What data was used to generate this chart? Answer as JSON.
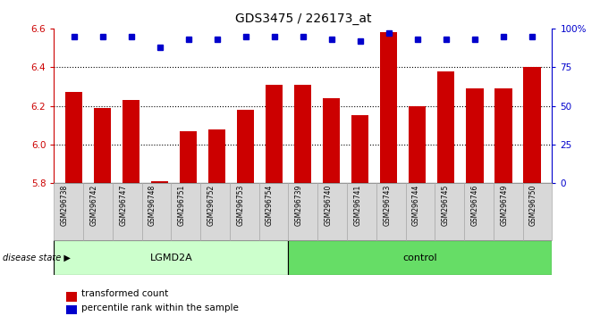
{
  "title": "GDS3475 / 226173_at",
  "samples": [
    "GSM296738",
    "GSM296742",
    "GSM296747",
    "GSM296748",
    "GSM296751",
    "GSM296752",
    "GSM296753",
    "GSM296754",
    "GSM296739",
    "GSM296740",
    "GSM296741",
    "GSM296743",
    "GSM296744",
    "GSM296745",
    "GSM296746",
    "GSM296749",
    "GSM296750"
  ],
  "bar_values": [
    6.27,
    6.19,
    6.23,
    5.81,
    6.07,
    6.08,
    6.18,
    6.31,
    6.31,
    6.24,
    6.15,
    6.58,
    6.2,
    6.38,
    6.29,
    6.29,
    6.4
  ],
  "percentile_values": [
    95,
    95,
    95,
    88,
    93,
    93,
    95,
    95,
    95,
    93,
    92,
    97,
    93,
    93,
    93,
    95,
    95
  ],
  "groups": [
    {
      "label": "LGMD2A",
      "start": 0,
      "end": 8,
      "color": "#ccffcc"
    },
    {
      "label": "control",
      "start": 8,
      "end": 17,
      "color": "#66dd66"
    }
  ],
  "ylim_left": [
    5.8,
    6.6
  ],
  "ylim_right": [
    0,
    100
  ],
  "yticks_left": [
    5.8,
    6.0,
    6.2,
    6.4,
    6.6
  ],
  "yticks_right": [
    0,
    25,
    50,
    75,
    100
  ],
  "ytick_right_labels": [
    "0",
    "25",
    "50",
    "75",
    "100%"
  ],
  "bar_color": "#cc0000",
  "dot_color": "#0000cc",
  "tick_label_color_left": "#cc0000",
  "tick_label_color_right": "#0000cc",
  "legend_items": [
    {
      "label": "transformed count",
      "color": "#cc0000"
    },
    {
      "label": "percentile rank within the sample",
      "color": "#0000cc"
    }
  ],
  "disease_state_label": "disease state",
  "bar_width": 0.6,
  "xtick_bg": "#d8d8d8"
}
